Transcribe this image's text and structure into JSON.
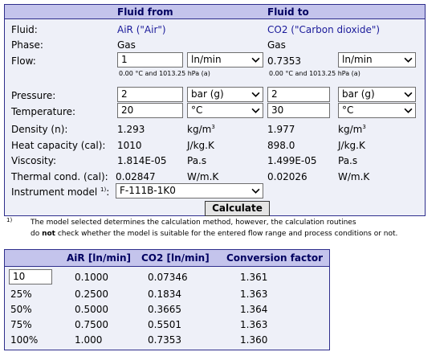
{
  "converter": {
    "header": {
      "from": "Fluid from",
      "to": "Fluid to"
    },
    "labels": {
      "fluid": "Fluid:",
      "phase": "Phase:",
      "flow": "Flow:",
      "pressure": "Pressure:",
      "temperature": "Temperature:",
      "density": "Density (n):",
      "heat_capacity": "Heat capacity (cal):",
      "viscosity": "Viscosity:",
      "thermal": "Thermal cond. (cal):",
      "instrument": "Instrument model",
      "instrument_sup": "1)"
    },
    "from": {
      "fluid": "AiR (\"Air\")",
      "phase": "Gas",
      "flow_value": "1",
      "flow_unit": "ln/min",
      "flow_ref": "0.00 °C and 1013.25 hPa (a)",
      "pressure_value": "2",
      "pressure_unit": "bar (g)",
      "temperature_value": "20",
      "temperature_unit": "°C",
      "density": "1.293",
      "heat_capacity": "1010",
      "viscosity": "1.814E-05",
      "thermal": "0.02847"
    },
    "to": {
      "fluid": "CO2 (\"Carbon dioxide\")",
      "phase": "Gas",
      "flow_value": "0.7353",
      "flow_unit": "ln/min",
      "flow_ref": "0.00 °C and 1013.25 hPa (a)",
      "pressure_value": "2",
      "pressure_unit": "bar (g)",
      "temperature_value": "30",
      "temperature_unit": "°C",
      "density": "1.977",
      "heat_capacity": "898.0",
      "viscosity": "1.499E-05",
      "thermal": "0.02026"
    },
    "units": {
      "density": "kg/m",
      "density_sup": "3",
      "heat_capacity": "J/kg.K",
      "viscosity": "Pa.s",
      "thermal": "W/m.K"
    },
    "instrument_model": "F-111B-1K0",
    "calculate_label": "Calculate"
  },
  "footnote": {
    "marker": "1)",
    "line1": "The model selected determines the calculation method, however, the calculation routines",
    "line2_pre": "do ",
    "line2_bold": "not",
    "line2_post": " check whether the model is suitable for the entered flow range and process conditions or not."
  },
  "table": {
    "headers": [
      "AiR [ln/min]",
      "CO2 [ln/min]",
      "Conversion factor"
    ],
    "input_value": "10",
    "rows": [
      {
        "label": "",
        "air": "0.1000",
        "co2": "0.07346",
        "factor": "1.361"
      },
      {
        "label": "25%",
        "air": "0.2500",
        "co2": "0.1834",
        "factor": "1.363"
      },
      {
        "label": "50%",
        "air": "0.5000",
        "co2": "0.3665",
        "factor": "1.364"
      },
      {
        "label": "75%",
        "air": "0.7500",
        "co2": "0.5501",
        "factor": "1.363"
      },
      {
        "label": "100%",
        "air": "1.000",
        "co2": "0.7353",
        "factor": "1.360"
      }
    ]
  },
  "colors": {
    "header_bg": "#c4c4ec",
    "panel_bg": "#eef0f8",
    "border": "#2e2e8c",
    "link_text": "#1a1a9a"
  }
}
